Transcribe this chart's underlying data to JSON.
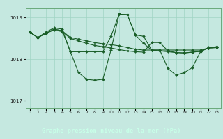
{
  "title": "Graphe pression niveau de la mer (hPa)",
  "bg_color": "#c5e8e0",
  "label_bg": "#4a8c5c",
  "grid_color": "#a0d4c4",
  "line_color": "#1a5e28",
  "spine_color": "#6aaa7a",
  "xlim_min": -0.5,
  "xlim_max": 23.5,
  "ylim_min": 1016.82,
  "ylim_max": 1019.22,
  "yticks": [
    1017,
    1018,
    1019
  ],
  "hours": [
    0,
    1,
    2,
    3,
    4,
    5,
    6,
    7,
    8,
    9,
    10,
    11,
    12,
    13,
    14,
    15,
    16,
    17,
    18,
    19,
    20,
    21,
    22,
    23
  ],
  "line_spike": [
    1018.65,
    1018.52,
    1018.65,
    1018.75,
    1018.72,
    1018.18,
    1017.68,
    1017.52,
    1017.5,
    1017.52,
    1018.22,
    1019.08,
    1019.07,
    1018.58,
    1018.38,
    1018.22,
    1018.22,
    1017.78,
    1017.62,
    1017.68,
    1017.8,
    1018.18,
    1018.28,
    1018.3
  ],
  "line_flat1": [
    1018.65,
    1018.52,
    1018.62,
    1018.72,
    1018.68,
    1018.52,
    1018.48,
    1018.44,
    1018.4,
    1018.37,
    1018.35,
    1018.32,
    1018.28,
    1018.24,
    1018.22,
    1018.22,
    1018.2,
    1018.18,
    1018.16,
    1018.15,
    1018.17,
    1018.19,
    1018.27,
    1018.28
  ],
  "line_flat2": [
    1018.65,
    1018.52,
    1018.62,
    1018.7,
    1018.66,
    1018.5,
    1018.44,
    1018.38,
    1018.33,
    1018.3,
    1018.27,
    1018.23,
    1018.2,
    1018.18,
    1018.17,
    1018.4,
    1018.4,
    1018.2,
    1018.16,
    1018.15,
    1018.17,
    1018.19,
    1018.27,
    1018.28
  ],
  "line_mid": [
    1018.65,
    1018.52,
    1018.62,
    1018.72,
    1018.68,
    1018.18,
    1018.18,
    1018.18,
    1018.18,
    1018.18,
    1018.55,
    1019.08,
    1019.07,
    1018.58,
    1018.55,
    1018.22,
    1018.22,
    1018.22,
    1018.22,
    1018.22,
    1018.22,
    1018.22,
    1018.27,
    1018.28
  ]
}
